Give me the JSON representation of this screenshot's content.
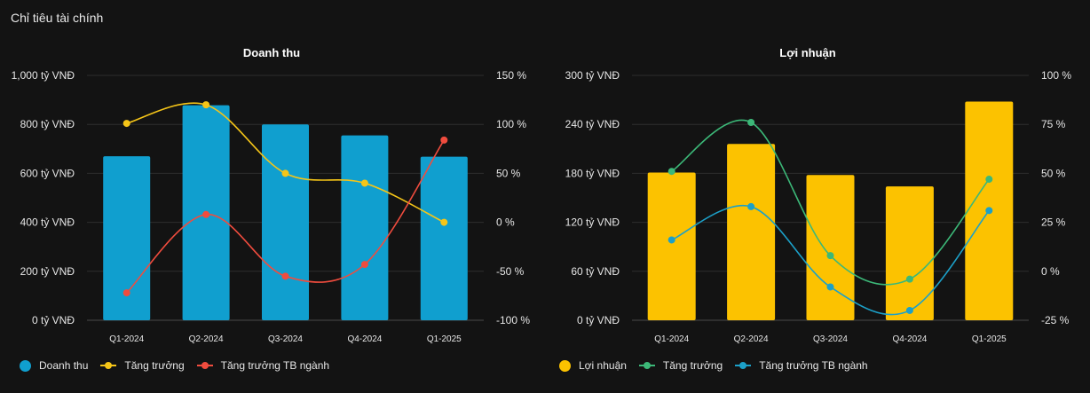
{
  "page": {
    "title": "Chỉ tiêu tài chính"
  },
  "chart_data": [
    {
      "type": "bar",
      "title": "Doanh thu",
      "categories": [
        "Q1-2024",
        "Q2-2024",
        "Q3-2024",
        "Q4-2024",
        "Q1-2025"
      ],
      "ylim_left": [
        0,
        1000
      ],
      "yticks_left": [
        "0 tỷ VNĐ",
        "200 tỷ VNĐ",
        "400 tỷ VNĐ",
        "600 tỷ VNĐ",
        "800 tỷ VNĐ",
        "1,000 tỷ VNĐ"
      ],
      "ylim_right": [
        -100,
        150
      ],
      "yticks_right": [
        "-100 %",
        "-50 %",
        "0 %",
        "50 %",
        "100 %",
        "150 %"
      ],
      "grid": true,
      "series": [
        {
          "name": "Doanh thu",
          "kind": "bar",
          "axis": "left",
          "color": "#109fcf",
          "values": [
            670,
            878,
            800,
            755,
            668
          ]
        },
        {
          "name": "Tăng trưởng",
          "kind": "line",
          "axis": "right",
          "color": "#f5c518",
          "values": [
            101,
            120,
            50,
            40,
            0
          ]
        },
        {
          "name": "Tăng trưởng TB ngành",
          "kind": "line",
          "axis": "right",
          "color": "#f04c3e",
          "values": [
            -72,
            8,
            -55,
            -43,
            84
          ]
        }
      ]
    },
    {
      "type": "bar",
      "title": "Lợi nhuận",
      "categories": [
        "Q1-2024",
        "Q2-2024",
        "Q3-2024",
        "Q4-2024",
        "Q1-2025"
      ],
      "ylim_left": [
        0,
        300
      ],
      "yticks_left": [
        "0 tỷ VNĐ",
        "60 tỷ VNĐ",
        "120 tỷ VNĐ",
        "180 tỷ VNĐ",
        "240 tỷ VNĐ",
        "300 tỷ VNĐ"
      ],
      "ylim_right": [
        -25,
        100
      ],
      "yticks_right": [
        "-25 %",
        "0 %",
        "25 %",
        "50 %",
        "75 %",
        "100 %"
      ],
      "grid": true,
      "series": [
        {
          "name": "Lợi nhuận",
          "kind": "bar",
          "axis": "left",
          "color": "#fcc200",
          "values": [
            181,
            216,
            178,
            164,
            268
          ]
        },
        {
          "name": "Tăng trưởng",
          "kind": "line",
          "axis": "right",
          "color": "#3cb878",
          "values": [
            51,
            76,
            8,
            -4,
            47
          ]
        },
        {
          "name": "Tăng trưởng TB ngành",
          "kind": "line",
          "axis": "right",
          "color": "#1ca0c8",
          "values": [
            16,
            33,
            -8,
            -20,
            31
          ]
        }
      ]
    }
  ]
}
